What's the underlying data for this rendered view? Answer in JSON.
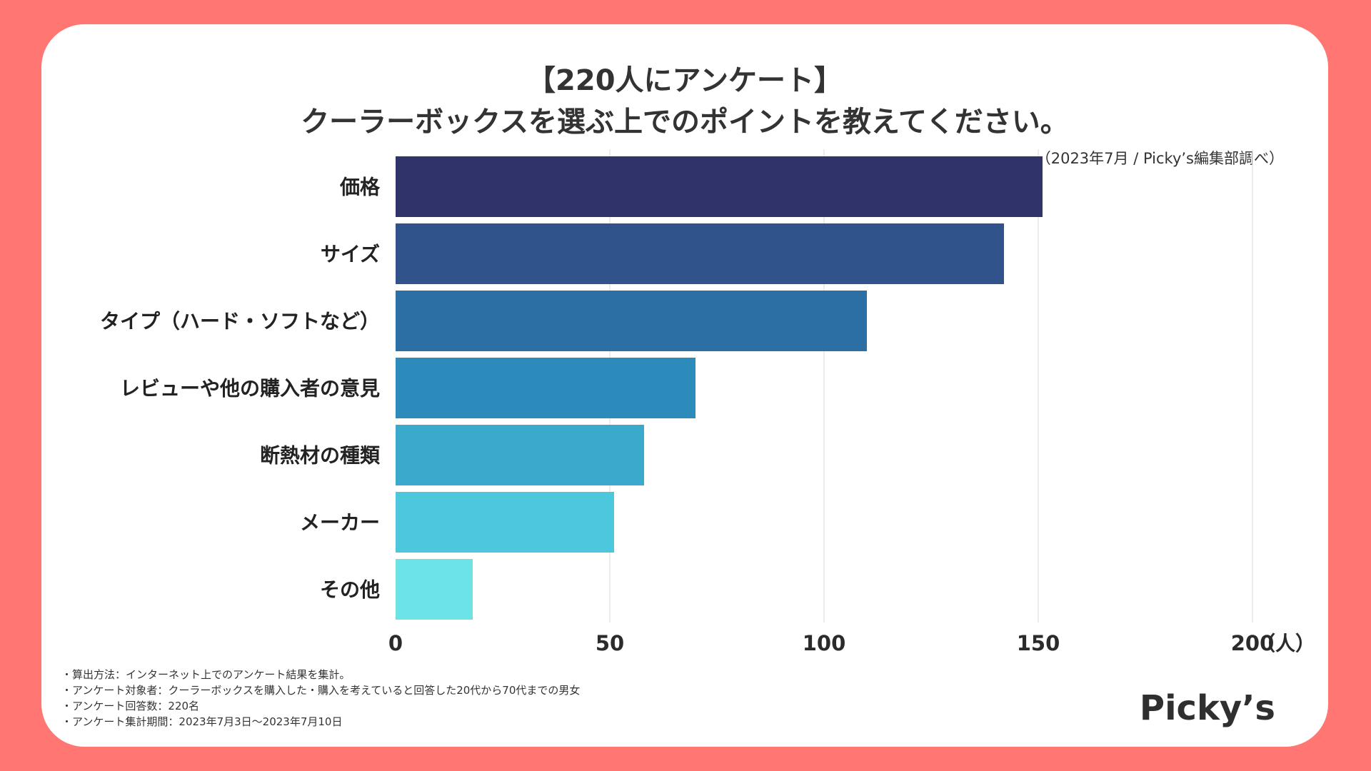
{
  "header": {
    "title_line1": "【220人にアンケート】",
    "title_line2": "クーラーボックスを選ぶ上でのポイントを教えてください。",
    "source": "（2023年7月 / Picky’s編集部調べ）"
  },
  "chart_data": {
    "type": "bar",
    "orientation": "horizontal",
    "categories": [
      "価格",
      "サイズ",
      "タイプ（ハード・ソフトなど）",
      "レビューや他の購入者の意見",
      "断熱材の種類",
      "メーカー",
      "その他"
    ],
    "values": [
      151,
      142,
      110,
      70,
      58,
      51,
      18
    ],
    "xlim": [
      0,
      200
    ],
    "xticks": [
      0,
      50,
      100,
      150,
      200
    ],
    "xlabel": "（人）",
    "grid": "vertical",
    "colors": [
      "#2F336A",
      "#30538B",
      "#2C6FA4",
      "#2C8BBA",
      "#3AA9CC",
      "#4DC7DC",
      "#6CE3E7"
    ]
  },
  "footer": {
    "notes": [
      "・算出方法：インターネット上でのアンケート結果を集計。",
      "・アンケート対象者：クーラーボックスを購入した・購入を考えていると回答した20代から70代までの男女",
      "・アンケート回答数：220名",
      "・アンケート集計期間：2023年7月3日〜2023年7月10日"
    ],
    "logo": "Picky’s"
  }
}
